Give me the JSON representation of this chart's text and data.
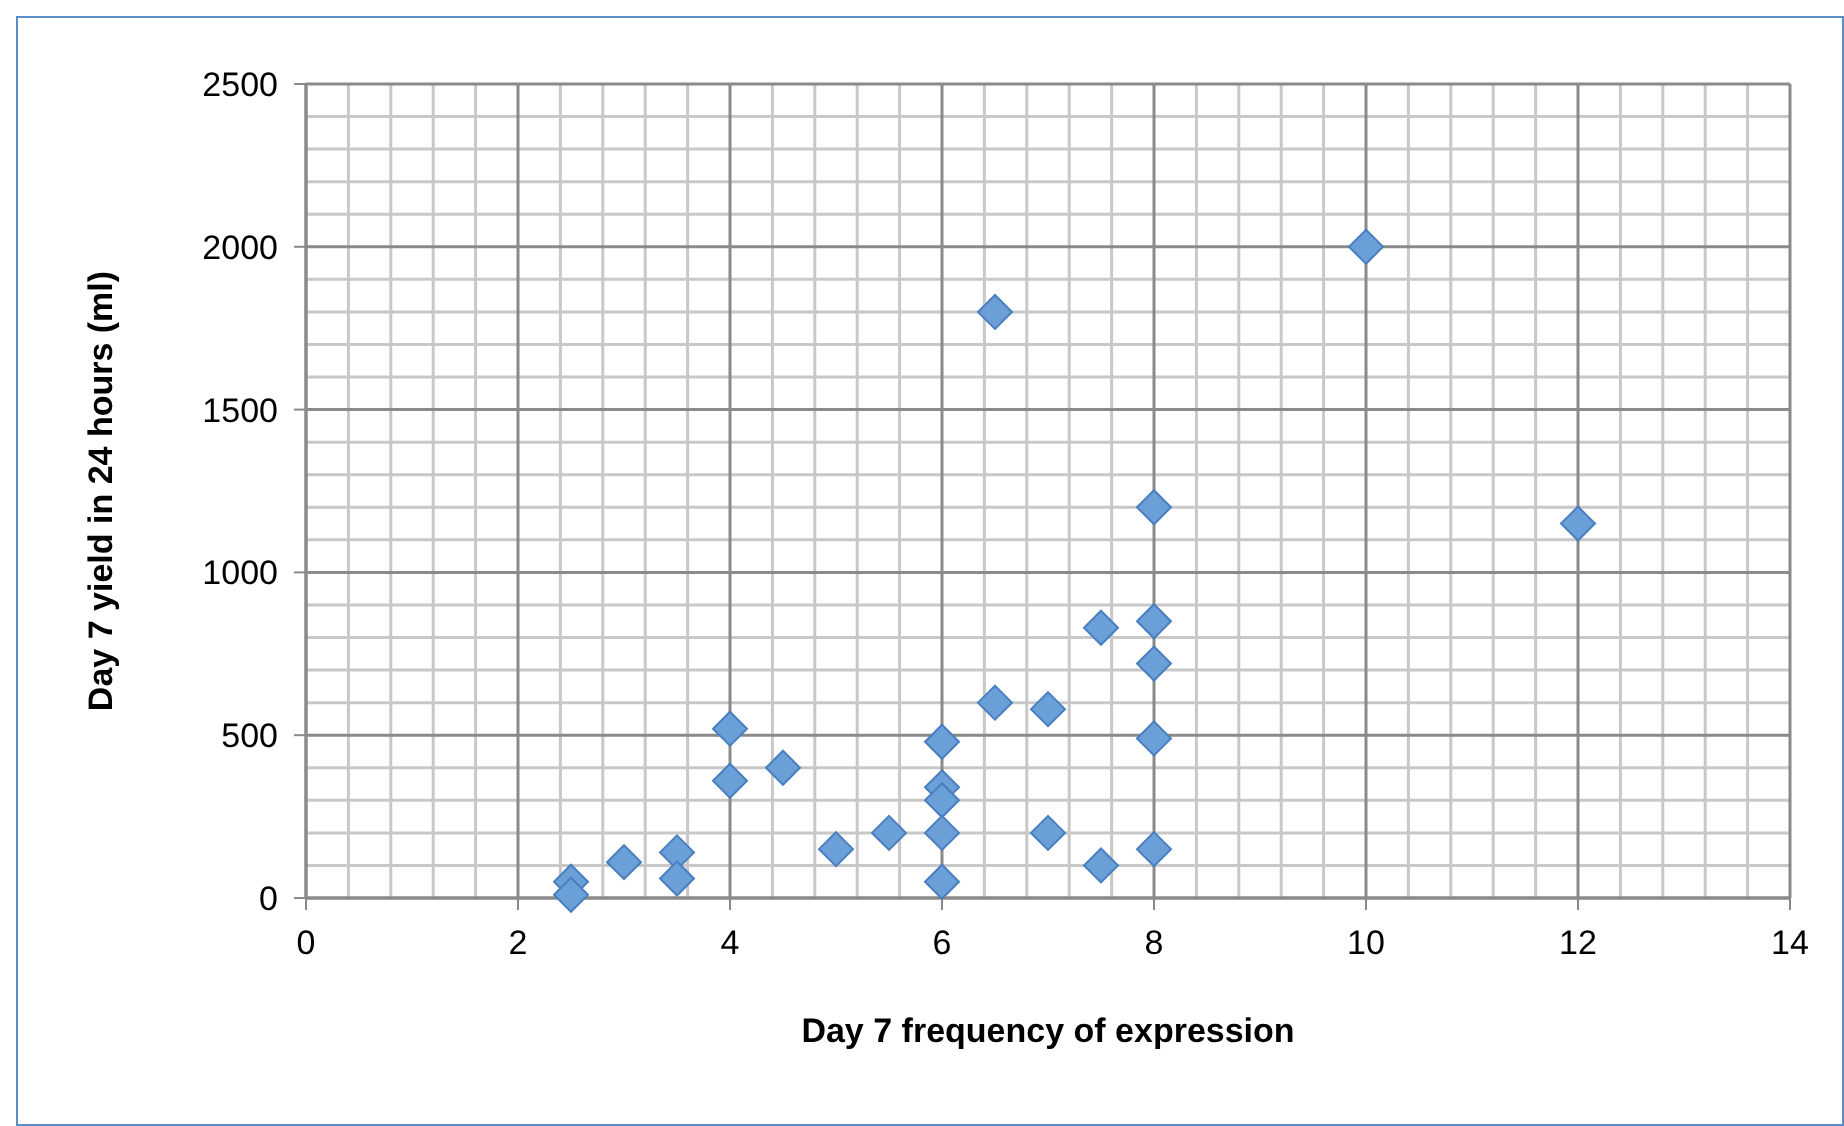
{
  "chart_data": {
    "type": "scatter",
    "xlabel": "Day 7 frequency of expression",
    "ylabel": "Day 7 yield in 24 hours (ml)",
    "x": [
      2.5,
      2.5,
      3,
      3.5,
      3.5,
      4,
      4,
      4.5,
      5,
      5.5,
      6,
      6,
      6,
      6,
      6,
      6.5,
      6.5,
      7,
      7,
      7.5,
      7.5,
      8,
      8,
      8,
      8,
      8,
      10,
      12
    ],
    "values": [
      50,
      10,
      110,
      140,
      60,
      520,
      360,
      400,
      150,
      200,
      480,
      340,
      300,
      200,
      50,
      1800,
      600,
      580,
      200,
      830,
      100,
      1200,
      850,
      720,
      490,
      150,
      2000,
      1150
    ],
    "color": "#6a9fd8",
    "marker": "diamond",
    "grid": true,
    "xlim": [
      0,
      14
    ],
    "xticks": [
      0,
      2,
      4,
      6,
      8,
      10,
      12,
      14
    ],
    "ylim": [
      0,
      2500
    ],
    "yticks": [
      0,
      500,
      1000,
      1500,
      2000,
      2500
    ]
  }
}
